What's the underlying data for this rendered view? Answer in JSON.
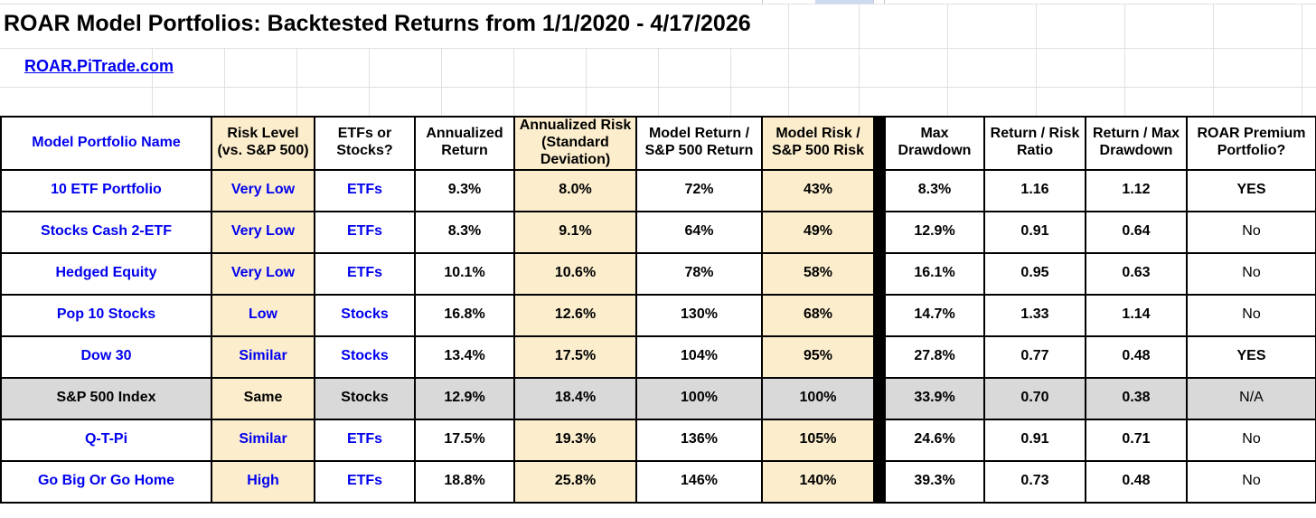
{
  "header": {
    "title": "ROAR Model Portfolios: Backtested Returns from 1/1/2020 - 4/17/2026",
    "link": "ROAR.PiTrade.com"
  },
  "colors": {
    "accent_blue": "#0000EE",
    "cream_highlight": "#FCEECD",
    "benchmark_gray": "#D9D9D9",
    "separator_black": "#000000",
    "gridline_gray": "#E0E0E0",
    "selection_blue": "#CCD9F1"
  },
  "table": {
    "columns": [
      {
        "id": "name",
        "label": "Model Portfolio Name"
      },
      {
        "id": "risk_level",
        "label": "Risk Level\n(vs. S&P 500)"
      },
      {
        "id": "etfs_or_stocks",
        "label": "ETFs or\nStocks?"
      },
      {
        "id": "annualized_return",
        "label": "Annualized\nReturn"
      },
      {
        "id": "annualized_risk",
        "label": "Annualized Risk\n(Standard\nDeviation)"
      },
      {
        "id": "model_return",
        "label": "Model Return /\nS&P 500 Return"
      },
      {
        "id": "model_risk",
        "label": "Model Risk /\nS&P 500 Risk"
      },
      {
        "id": "max_drawdown",
        "label": "Max\nDrawdown"
      },
      {
        "id": "return_risk_ratio",
        "label": "Return / Risk\nRatio"
      },
      {
        "id": "return_max_drawdown",
        "label": "Return / Max\nDrawdown"
      },
      {
        "id": "premium",
        "label": "ROAR Premium\nPortfolio?"
      }
    ],
    "rows": [
      {
        "name": "10 ETF Portfolio",
        "risk_level": "Very Low",
        "etfs_or_stocks": "ETFs",
        "annualized_return": "9.3%",
        "annualized_risk": "8.0%",
        "model_return": "72%",
        "model_risk": "43%",
        "max_drawdown": "8.3%",
        "return_risk_ratio": "1.16",
        "return_max_drawdown": "1.12",
        "premium": "YES",
        "is_benchmark": false
      },
      {
        "name": "Stocks Cash 2-ETF",
        "risk_level": "Very Low",
        "etfs_or_stocks": "ETFs",
        "annualized_return": "8.3%",
        "annualized_risk": "9.1%",
        "model_return": "64%",
        "model_risk": "49%",
        "max_drawdown": "12.9%",
        "return_risk_ratio": "0.91",
        "return_max_drawdown": "0.64",
        "premium": "No",
        "is_benchmark": false
      },
      {
        "name": "Hedged Equity",
        "risk_level": "Very Low",
        "etfs_or_stocks": "ETFs",
        "annualized_return": "10.1%",
        "annualized_risk": "10.6%",
        "model_return": "78%",
        "model_risk": "58%",
        "max_drawdown": "16.1%",
        "return_risk_ratio": "0.95",
        "return_max_drawdown": "0.63",
        "premium": "No",
        "is_benchmark": false
      },
      {
        "name": "Pop 10 Stocks",
        "risk_level": "Low",
        "etfs_or_stocks": "Stocks",
        "annualized_return": "16.8%",
        "annualized_risk": "12.6%",
        "model_return": "130%",
        "model_risk": "68%",
        "max_drawdown": "14.7%",
        "return_risk_ratio": "1.33",
        "return_max_drawdown": "1.14",
        "premium": "No",
        "is_benchmark": false
      },
      {
        "name": "Dow 30",
        "risk_level": "Similar",
        "etfs_or_stocks": "Stocks",
        "annualized_return": "13.4%",
        "annualized_risk": "17.5%",
        "model_return": "104%",
        "model_risk": "95%",
        "max_drawdown": "27.8%",
        "return_risk_ratio": "0.77",
        "return_max_drawdown": "0.48",
        "premium": "YES",
        "is_benchmark": false
      },
      {
        "name": "S&P 500 Index",
        "risk_level": "Same",
        "etfs_or_stocks": "Stocks",
        "annualized_return": "12.9%",
        "annualized_risk": "18.4%",
        "model_return": "100%",
        "model_risk": "100%",
        "max_drawdown": "33.9%",
        "return_risk_ratio": "0.70",
        "return_max_drawdown": "0.38",
        "premium": "N/A",
        "is_benchmark": true
      },
      {
        "name": "Q-T-Pi",
        "risk_level": "Similar",
        "etfs_or_stocks": "ETFs",
        "annualized_return": "17.5%",
        "annualized_risk": "19.3%",
        "model_return": "136%",
        "model_risk": "105%",
        "max_drawdown": "24.6%",
        "return_risk_ratio": "0.91",
        "return_max_drawdown": "0.71",
        "premium": "No",
        "is_benchmark": false
      },
      {
        "name": "Go Big Or Go Home",
        "risk_level": "High",
        "etfs_or_stocks": "ETFs",
        "annualized_return": "18.8%",
        "annualized_risk": "25.8%",
        "model_return": "146%",
        "model_risk": "140%",
        "max_drawdown": "39.3%",
        "return_risk_ratio": "0.73",
        "return_max_drawdown": "0.48",
        "premium": "No",
        "is_benchmark": false
      }
    ]
  }
}
